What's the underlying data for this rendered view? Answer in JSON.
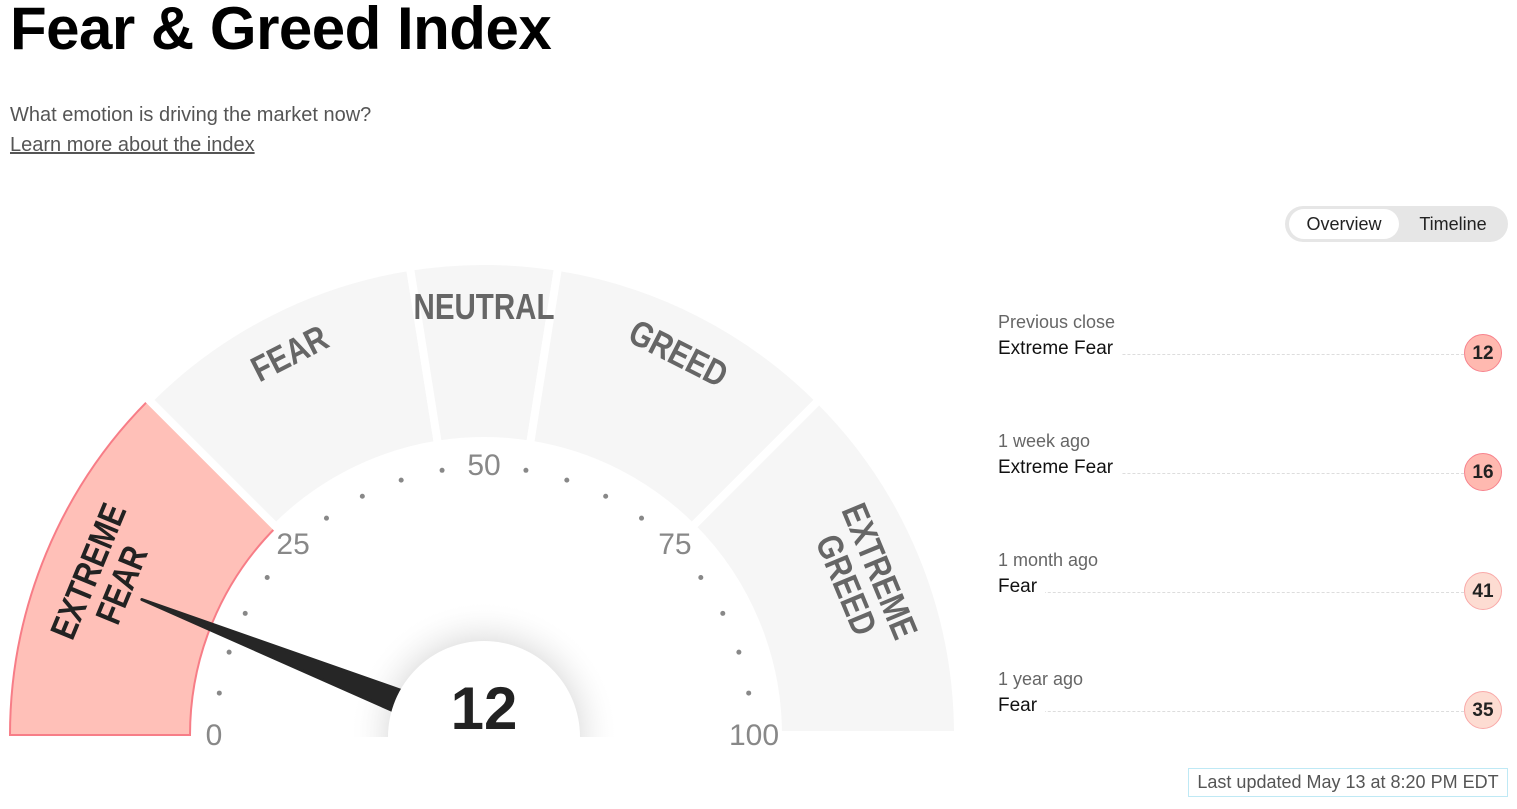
{
  "header": {
    "title": "Fear & Greed Index",
    "subtitle": "What emotion is driving the market now?",
    "learn_more": "Learn more about the index"
  },
  "toggle": {
    "overview": "Overview",
    "timeline": "Timeline",
    "active": "Overview"
  },
  "gauge": {
    "value": 12,
    "value_label": "12",
    "range": [
      0,
      100
    ],
    "ticks": [
      "0",
      "25",
      "50",
      "75",
      "100"
    ],
    "segments": [
      {
        "lines": [
          "EXTREME",
          "FEAR"
        ],
        "from": 0,
        "to": 25,
        "active": true
      },
      {
        "lines": [
          "FEAR"
        ],
        "from": 25,
        "to": 45,
        "active": false
      },
      {
        "lines": [
          "NEUTRAL"
        ],
        "from": 45,
        "to": 55,
        "active": false
      },
      {
        "lines": [
          "GREED"
        ],
        "from": 55,
        "to": 75,
        "active": false
      },
      {
        "lines": [
          "EXTREME",
          "GREED"
        ],
        "from": 75,
        "to": 100,
        "active": false
      }
    ],
    "colors": {
      "active_fill": "#ffc0b8",
      "active_stroke": "#f77d87",
      "inactive_fill": "#f6f6f6",
      "needle": "#262626"
    }
  },
  "history": [
    {
      "label": "Previous close",
      "rating": "Extreme Fear",
      "value": "12",
      "color": "#ffb9b0",
      "border": "#f7828c"
    },
    {
      "label": "1 week ago",
      "rating": "Extreme Fear",
      "value": "16",
      "color": "#ffb9b0",
      "border": "#f7828c"
    },
    {
      "label": "1 month ago",
      "rating": "Fear",
      "value": "41",
      "color": "#fddcd2",
      "border": "#f9a9a8"
    },
    {
      "label": "1 year ago",
      "rating": "Fear",
      "value": "35",
      "color": "#fddcd2",
      "border": "#f9a9a8"
    }
  ],
  "last_updated": "Last updated May 13 at 8:20 PM EDT"
}
